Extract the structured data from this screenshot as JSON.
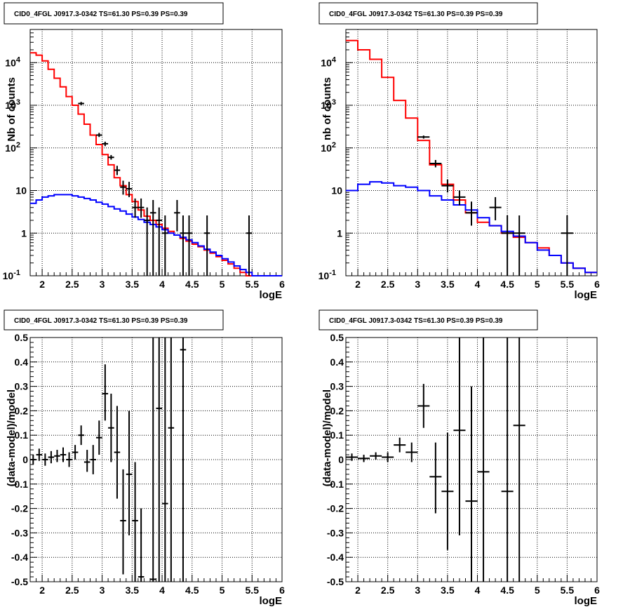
{
  "chart_data": [
    {
      "id": "top-left",
      "type": "line",
      "title": "CID0_4FGL J0917.3-0342 TS=61.30 PS=0.39 PS=0.39",
      "xlabel": "logE",
      "ylabel": "Nb of counts",
      "xlim": [
        1.8,
        6
      ],
      "ylim": [
        0.1,
        60000
      ],
      "yscale": "log",
      "grid": true,
      "xticks": [
        "2",
        "2.5",
        "3",
        "3.5",
        "4",
        "4.5",
        "5",
        "5.5",
        "6"
      ],
      "yticks": [
        "10-1",
        "1",
        "10",
        "102",
        "103",
        "104"
      ],
      "series": [
        {
          "color": "#ff0000",
          "bin_width": 0.1,
          "x": [
            1.85,
            1.95,
            2.05,
            2.15,
            2.25,
            2.35,
            2.45,
            2.55,
            2.65,
            2.75,
            2.85,
            2.95,
            3.05,
            3.15,
            3.25,
            3.35,
            3.45,
            3.55,
            3.65,
            3.75,
            3.85,
            3.95,
            4.05,
            4.15,
            4.25,
            4.35,
            4.45,
            4.55,
            4.65,
            4.75,
            4.85,
            4.95,
            5.05,
            5.15,
            5.25,
            5.35,
            5.45,
            5.55,
            5.65,
            5.75,
            5.85,
            5.95
          ],
          "values": [
            17000,
            15000,
            11000,
            7000,
            4300,
            2700,
            1600,
            1000,
            620,
            360,
            200,
            120,
            70,
            40,
            20,
            13,
            8,
            5.5,
            3.5,
            2.5,
            2.0,
            1.6,
            1.3,
            1.1,
            0.9,
            0.75,
            0.65,
            0.55,
            0.48,
            0.4,
            0.34,
            0.28,
            0.23,
            0.19,
            0.15,
            0.12,
            0.1,
            0.09,
            0.09,
            0.09,
            0.09,
            0.09
          ]
        },
        {
          "color": "#0000ff",
          "bin_width": 0.1,
          "x": [
            1.85,
            1.95,
            2.05,
            2.15,
            2.25,
            2.35,
            2.45,
            2.55,
            2.65,
            2.75,
            2.85,
            2.95,
            3.05,
            3.15,
            3.25,
            3.35,
            3.45,
            3.55,
            3.65,
            3.75,
            3.85,
            3.95,
            4.05,
            4.15,
            4.25,
            4.35,
            4.45,
            4.55,
            4.65,
            4.75,
            4.85,
            4.95,
            5.05,
            5.15,
            5.25,
            5.35,
            5.45,
            5.55,
            5.65,
            5.75,
            5.85,
            5.95
          ],
          "values": [
            5,
            6,
            7,
            7.5,
            8,
            8,
            8,
            7.5,
            7,
            6.5,
            6,
            5.3,
            4.8,
            4.2,
            3.7,
            3.3,
            2.8,
            2.4,
            2.1,
            1.8,
            1.6,
            1.4,
            1.2,
            1.0,
            0.9,
            0.8,
            0.7,
            0.6,
            0.5,
            0.42,
            0.36,
            0.3,
            0.25,
            0.21,
            0.17,
            0.14,
            0.12,
            0.1,
            0.09,
            0.09,
            0.09,
            0.09
          ]
        }
      ],
      "points": {
        "x": [
          2.65,
          2.95,
          3.05,
          3.15,
          3.25,
          3.35,
          3.45,
          3.55,
          3.65,
          3.75,
          3.85,
          3.95,
          4.05,
          4.25,
          4.35,
          4.45,
          4.75,
          5.45
        ],
        "y": [
          1100,
          200,
          125,
          60,
          30,
          12,
          11,
          4,
          4,
          2,
          3,
          2,
          1,
          3,
          1,
          1,
          1,
          1
        ],
        "y_low": [
          1000,
          180,
          110,
          53,
          23,
          8,
          7,
          2.3,
          2.3,
          0.05,
          0.05,
          0.05,
          0.05,
          1.1,
          0.05,
          0.05,
          0.05,
          0.05
        ],
        "y_high": [
          1200,
          225,
          140,
          68,
          38,
          17,
          16,
          6.5,
          6.5,
          4,
          6,
          4,
          2.6,
          6,
          2.6,
          2.6,
          2.6,
          2.6
        ],
        "x_half": 0.05
      }
    },
    {
      "id": "top-right",
      "type": "line",
      "title": "CID0_4FGL J0917.3-0342 TS=61.30 PS=0.39 PS=0.39",
      "xlabel": "logE",
      "ylabel": "nb of counts",
      "xlim": [
        1.8,
        6
      ],
      "ylim": [
        0.1,
        60000
      ],
      "yscale": "log",
      "grid": true,
      "xticks": [
        "2",
        "2.5",
        "3",
        "3.5",
        "4",
        "4.5",
        "5",
        "5.5",
        "6"
      ],
      "yticks": [
        "10-1",
        "1",
        "10",
        "102",
        "103",
        "104"
      ],
      "series": [
        {
          "color": "#ff0000",
          "bin_width": 0.2,
          "x": [
            1.9,
            2.1,
            2.3,
            2.5,
            2.7,
            2.9,
            3.1,
            3.3,
            3.5,
            3.7,
            3.9,
            4.1,
            4.3,
            4.5,
            4.7,
            4.9,
            5.1,
            5.3,
            5.5,
            5.7,
            5.9
          ],
          "values": [
            33000,
            20000,
            12000,
            4500,
            1300,
            500,
            150,
            40,
            14,
            6,
            3,
            1.8,
            1.5,
            1.0,
            0.8,
            0.6,
            0.45,
            0.3,
            0.2,
            0.15,
            0.12
          ]
        },
        {
          "color": "#0000ff",
          "bin_width": 0.2,
          "x": [
            1.9,
            2.1,
            2.3,
            2.5,
            2.7,
            2.9,
            3.1,
            3.3,
            3.5,
            3.7,
            3.9,
            4.1,
            4.3,
            4.5,
            4.7,
            4.9,
            5.1,
            5.3,
            5.5,
            5.7,
            5.9
          ],
          "values": [
            10,
            14,
            16,
            15,
            13,
            12,
            10,
            7.5,
            6,
            4.6,
            3.5,
            2.3,
            1.5,
            1.1,
            0.85,
            0.6,
            0.4,
            0.3,
            0.2,
            0.15,
            0.12
          ]
        }
      ],
      "points": {
        "x": [
          3.1,
          3.3,
          3.5,
          3.7,
          3.9,
          4.3,
          4.5,
          4.7,
          5.5
        ],
        "y": [
          180,
          43,
          13,
          7,
          3,
          4,
          1,
          1,
          1
        ],
        "y_low": [
          165,
          35,
          9,
          4.5,
          1.5,
          2,
          0.05,
          0.05,
          0.05
        ],
        "y_high": [
          195,
          52,
          18,
          10,
          5.5,
          7,
          2.6,
          2.6,
          2.6
        ],
        "x_half": 0.1
      }
    },
    {
      "id": "bottom-left",
      "type": "scatter",
      "title": "CID0_4FGL J0917.3-0342 TS=61.30 PS=0.39 PS=0.39",
      "xlabel": "logE",
      "ylabel": "(data-model)/model",
      "xlim": [
        1.8,
        6
      ],
      "ylim": [
        -0.5,
        0.5
      ],
      "grid": true,
      "xticks": [
        "2",
        "2.5",
        "3",
        "3.5",
        "4",
        "4.5",
        "5",
        "5.5",
        "6"
      ],
      "yticks": [
        "-0.5",
        "-0.4",
        "-0.3",
        "-0.2",
        "-0.1",
        "0",
        "0.1",
        "0.2",
        "0.3",
        "0.4",
        "0.5"
      ],
      "points": {
        "x": [
          1.85,
          1.95,
          2.05,
          2.15,
          2.25,
          2.35,
          2.45,
          2.55,
          2.65,
          2.75,
          2.85,
          2.95,
          3.05,
          3.15,
          3.25,
          3.35,
          3.45,
          3.55,
          3.65,
          3.85,
          3.95,
          4.05,
          4.15,
          4.35
        ],
        "y": [
          0.0,
          0.02,
          0.0,
          0.01,
          0.015,
          0.02,
          0.0,
          0.03,
          0.1,
          -0.01,
          0.0,
          0.09,
          0.27,
          0.13,
          0.03,
          -0.25,
          -0.06,
          -0.25,
          -0.48,
          -0.49,
          0.21,
          -0.18,
          0.13,
          0.45
        ],
        "y_low": [
          -0.02,
          -0.005,
          -0.025,
          -0.015,
          -0.01,
          -0.01,
          -0.03,
          0.0,
          0.06,
          -0.05,
          -0.06,
          0.02,
          0.16,
          -0.01,
          -0.16,
          -0.47,
          -0.31,
          -0.5,
          -0.5,
          -0.5,
          -0.5,
          -0.5,
          -0.5,
          -0.5
        ],
        "y_high": [
          0.02,
          0.045,
          0.025,
          0.035,
          0.04,
          0.05,
          0.03,
          0.06,
          0.14,
          0.04,
          0.06,
          0.16,
          0.39,
          0.27,
          0.22,
          -0.04,
          0.2,
          -0.01,
          -0.2,
          0.5,
          0.5,
          0.5,
          0.5,
          0.5
        ],
        "x_half": 0.05
      }
    },
    {
      "id": "bottom-right",
      "type": "scatter",
      "title": "CID0_4FGL J0917.3-0342 TS=61.30 PS=0.39 PS=0.39",
      "xlabel": "logE",
      "ylabel": "(data-model)/model",
      "xlim": [
        1.8,
        6
      ],
      "ylim": [
        -0.5,
        0.5
      ],
      "grid": true,
      "xticks": [
        "2",
        "2.5",
        "3",
        "3.5",
        "4",
        "4.5",
        "5",
        "5.5",
        "6"
      ],
      "yticks": [
        "-0.5",
        "-0.4",
        "-0.3",
        "-0.2",
        "-0.1",
        "0",
        "0.1",
        "0.2",
        "0.3",
        "0.4",
        "0.5"
      ],
      "points": {
        "x": [
          1.9,
          2.1,
          2.3,
          2.5,
          2.7,
          2.9,
          3.1,
          3.3,
          3.5,
          3.7,
          3.9,
          4.1,
          4.5,
          4.7
        ],
        "y": [
          0.01,
          0.005,
          0.015,
          0.01,
          0.06,
          0.03,
          0.22,
          -0.07,
          -0.13,
          0.12,
          -0.17,
          -0.05,
          -0.13,
          0.14
        ],
        "y_low": [
          -0.005,
          -0.01,
          0.0,
          -0.01,
          0.03,
          -0.01,
          0.13,
          -0.22,
          -0.37,
          -0.31,
          -0.5,
          -0.5,
          -0.5,
          -0.5
        ],
        "y_high": [
          0.025,
          0.02,
          0.03,
          0.03,
          0.09,
          0.07,
          0.31,
          0.07,
          0.11,
          0.5,
          0.3,
          0.5,
          0.5,
          0.5
        ],
        "x_half": 0.1
      }
    }
  ]
}
